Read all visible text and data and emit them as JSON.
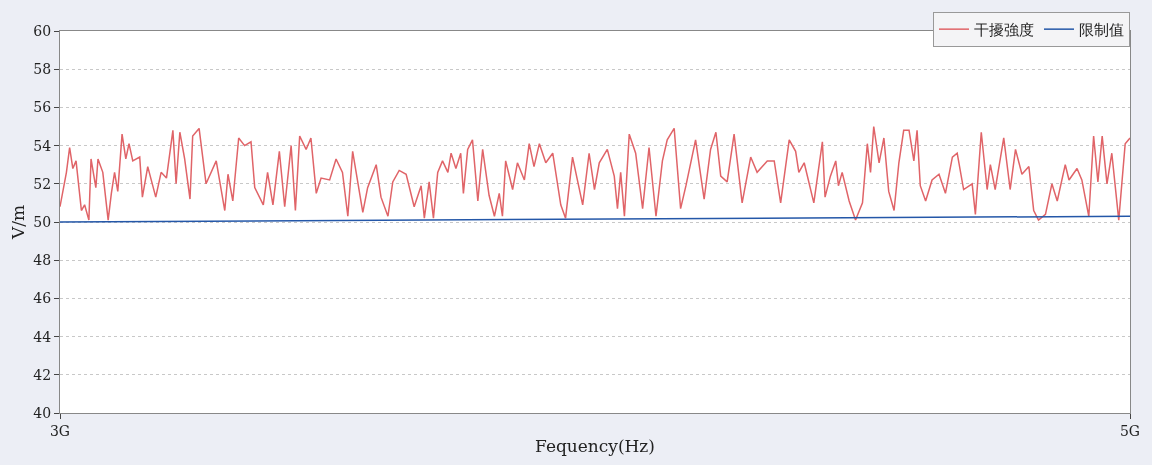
{
  "chart_data": {
    "type": "line",
    "xlabel": "Fequency(Hz)",
    "ylabel": "V/m",
    "xlim": [
      3,
      5
    ],
    "xticks": [
      {
        "value": 3,
        "label": "3G"
      },
      {
        "value": 5,
        "label": "5G"
      }
    ],
    "ylim": [
      40,
      60
    ],
    "yticks": [
      40,
      42,
      44,
      46,
      48,
      50,
      52,
      54,
      56,
      58,
      60
    ],
    "grid": "y",
    "legend": "top right",
    "line_style": "solid",
    "marker": "none",
    "series": [
      {
        "name": "干擾強度",
        "color": "#e06468",
        "x": [
          3.0,
          3.012,
          3.018,
          3.024,
          3.03,
          3.04,
          3.046,
          3.054,
          3.058,
          3.067,
          3.071,
          3.08,
          3.09,
          3.096,
          3.102,
          3.108,
          3.116,
          3.123,
          3.129,
          3.136,
          3.149,
          3.154,
          3.164,
          3.179,
          3.189,
          3.199,
          3.211,
          3.217,
          3.224,
          3.233,
          3.243,
          3.248,
          3.26,
          3.273,
          3.292,
          3.308,
          3.314,
          3.323,
          3.334,
          3.345,
          3.357,
          3.364,
          3.38,
          3.388,
          3.398,
          3.41,
          3.42,
          3.432,
          3.44,
          3.448,
          3.46,
          3.469,
          3.479,
          3.488,
          3.504,
          3.516,
          3.528,
          3.538,
          3.547,
          3.566,
          3.575,
          3.591,
          3.6,
          3.613,
          3.622,
          3.634,
          3.647,
          3.662,
          3.675,
          3.681,
          3.69,
          3.698,
          3.706,
          3.715,
          3.725,
          3.731,
          3.74,
          3.749,
          3.754,
          3.762,
          3.771,
          3.781,
          3.79,
          3.802,
          3.812,
          3.821,
          3.827,
          3.833,
          3.846,
          3.855,
          3.868,
          3.877,
          3.886,
          3.896,
          3.908,
          3.921,
          3.936,
          3.945,
          3.958,
          3.977,
          3.989,
          3.999,
          4.008,
          4.023,
          4.036,
          4.042,
          4.048,
          4.055,
          4.064,
          4.076,
          4.089,
          4.101,
          4.114,
          4.126,
          4.135,
          4.148,
          4.16,
          4.17,
          4.188,
          4.204,
          4.216,
          4.226,
          4.235,
          4.247,
          4.26,
          4.275,
          4.291,
          4.303,
          4.322,
          4.335,
          4.347,
          4.363,
          4.375,
          4.381,
          4.391,
          4.409,
          4.425,
          4.43,
          4.44,
          4.45,
          4.455,
          4.462,
          4.475,
          4.487,
          4.5,
          4.509,
          4.515,
          4.521,
          4.531,
          4.54,
          4.549,
          4.559,
          4.568,
          4.577,
          4.587,
          4.596,
          4.602,
          4.608,
          4.618,
          4.63,
          4.643,
          4.655,
          4.668,
          4.677,
          4.689,
          4.705,
          4.711,
          4.722,
          4.733,
          4.739,
          4.748,
          4.764,
          4.776,
          4.786,
          4.798,
          4.811,
          4.82,
          4.829,
          4.842,
          4.854,
          4.864,
          4.879,
          4.886,
          4.901,
          4.91,
          4.923,
          4.932,
          4.94,
          4.948,
          4.957,
          4.966,
          4.979,
          4.991,
          5.0
        ],
        "values": [
          50.8,
          52.6,
          53.9,
          52.8,
          53.2,
          50.6,
          50.9,
          50.1,
          53.3,
          51.8,
          53.3,
          52.6,
          50.1,
          51.5,
          52.6,
          51.6,
          54.6,
          53.3,
          54.1,
          53.2,
          53.4,
          51.3,
          52.9,
          51.3,
          52.6,
          52.3,
          54.8,
          52.0,
          54.7,
          53.3,
          51.2,
          54.5,
          54.9,
          52.0,
          53.2,
          50.6,
          52.5,
          51.1,
          54.4,
          54.0,
          54.2,
          51.8,
          50.9,
          52.6,
          50.9,
          53.7,
          50.8,
          54.0,
          50.6,
          54.5,
          53.8,
          54.4,
          51.5,
          52.3,
          52.2,
          53.3,
          52.6,
          50.3,
          53.7,
          50.5,
          51.8,
          53.0,
          51.3,
          50.3,
          52.1,
          52.7,
          52.5,
          50.8,
          51.9,
          50.2,
          52.1,
          50.2,
          52.6,
          53.2,
          52.6,
          53.6,
          52.8,
          53.6,
          51.5,
          53.8,
          54.3,
          51.1,
          53.8,
          51.4,
          50.3,
          51.5,
          50.3,
          53.2,
          51.7,
          53.1,
          52.2,
          54.1,
          52.9,
          54.1,
          53.1,
          53.6,
          50.9,
          50.2,
          53.4,
          50.9,
          53.6,
          51.7,
          53.1,
          53.8,
          52.4,
          50.7,
          52.6,
          50.3,
          54.6,
          53.6,
          50.7,
          53.9,
          50.3,
          53.2,
          54.3,
          54.9,
          50.7,
          51.9,
          54.3,
          51.2,
          53.8,
          54.7,
          52.4,
          52.1,
          54.6,
          51.0,
          53.4,
          52.6,
          53.2,
          53.2,
          51.0,
          54.3,
          53.7,
          52.6,
          53.1,
          51.0,
          54.2,
          51.3,
          52.4,
          53.2,
          51.9,
          52.6,
          51.1,
          50.1,
          51.0,
          54.1,
          52.6,
          55.0,
          53.1,
          54.4,
          51.6,
          50.6,
          53.1,
          54.8,
          54.8,
          53.2,
          54.8,
          51.9,
          51.1,
          52.2,
          52.5,
          51.5,
          53.4,
          53.6,
          51.7,
          52.0,
          50.4,
          54.7,
          51.7,
          53.0,
          51.7,
          54.4,
          51.7,
          53.8,
          52.5,
          52.9,
          50.6,
          50.1,
          50.4,
          52.0,
          51.1,
          53.0,
          52.2,
          52.8,
          52.2,
          50.3,
          54.5,
          52.1,
          54.5,
          52.0,
          53.6,
          50.1,
          54.1,
          54.4
        ]
      },
      {
        "name": "限制值",
        "color": "#2457a8",
        "x": [
          3,
          5
        ],
        "values": [
          50.0,
          50.3
        ]
      }
    ]
  }
}
